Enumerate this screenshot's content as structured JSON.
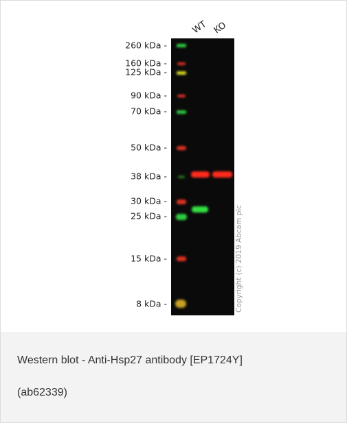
{
  "blot": {
    "lanes": [
      "WT",
      "KO"
    ],
    "markers": [
      "260 kDa -",
      "160 kDa -",
      "125 kDa -",
      "90 kDa -",
      "70 kDa -",
      "50 kDa -",
      "38 kDa -",
      "30 kDa -",
      "25 kDa -",
      "15 kDa -",
      "8 kDa -"
    ],
    "copyright": "Copyright (c) 2019 Abcam plc"
  },
  "caption": {
    "lines": [
      "Western blot - Anti-Hsp27 antibody [EP1724Y]",
      "(ab62339)"
    ]
  }
}
